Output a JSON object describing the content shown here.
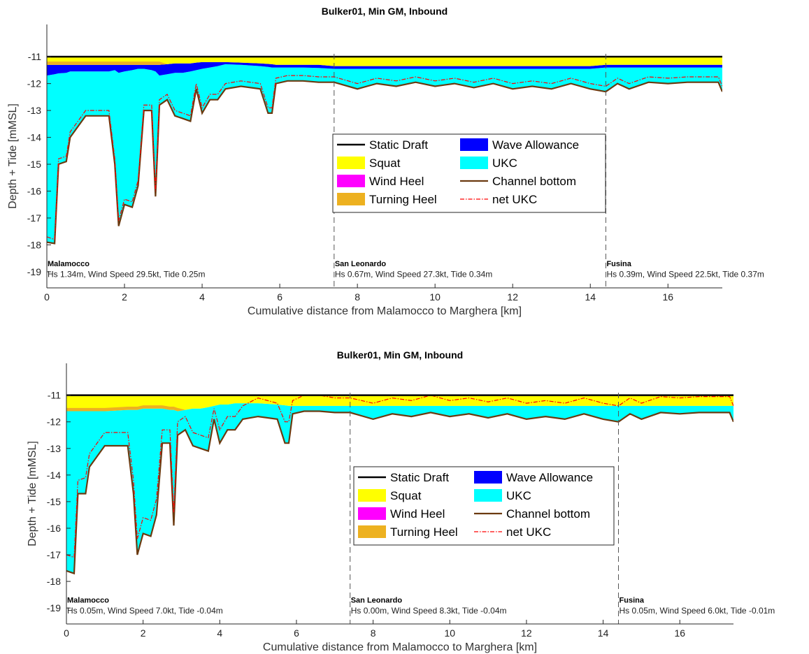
{
  "chart_data": [
    {
      "type": "area",
      "title": "Bulker01, Min GM, Inbound",
      "xlabel": "Cumulative distance from Malamocco to Marghera [km]",
      "ylabel": "Depth + Tide [mMSL]",
      "xlim": [
        0,
        17.4
      ],
      "ylim": [
        -19.6,
        -9.8
      ],
      "xticks": [
        0,
        2,
        4,
        6,
        8,
        10,
        12,
        14,
        16
      ],
      "yticks": [
        -19,
        -18,
        -17,
        -16,
        -15,
        -14,
        -13,
        -12,
        -11
      ],
      "grid": false,
      "legend_position": "center-right",
      "legend": [
        "Static Draft",
        "Wave Allowance",
        "Squat",
        "UKC",
        "Wind Heel",
        "Channel bottom",
        "Turning Heel",
        "net UKC"
      ],
      "colors": {
        "static_draft": "#000000",
        "wave_allowance": "#0000ff",
        "squat": "#ffff00",
        "ukc": "#00ffff",
        "wind_heel": "#ff00ff",
        "channel_bottom": "#6b3a10",
        "turning_heel": "#edb120",
        "net_ukc": "#ff0000"
      },
      "static_draft": -11.0,
      "x": [
        0,
        0.2,
        0.3,
        0.5,
        0.6,
        1.0,
        1.6,
        1.75,
        1.85,
        2.0,
        2.2,
        2.35,
        2.5,
        2.7,
        2.8,
        2.9,
        3.1,
        3.3,
        3.5,
        3.7,
        3.85,
        4.0,
        4.2,
        4.4,
        4.6,
        5.0,
        5.5,
        5.7,
        5.8,
        5.9,
        6.2,
        6.6,
        7.0,
        7.4,
        8.0,
        8.5,
        9.0,
        9.5,
        10.0,
        10.5,
        11.0,
        11.5,
        12.0,
        12.5,
        13.0,
        13.5,
        14.0,
        14.4,
        14.7,
        15.0,
        15.5,
        16.0,
        16.5,
        17.0,
        17.3,
        17.4
      ],
      "squat_bottom": [
        -11.3,
        -11.3,
        -11.3,
        -11.3,
        -11.3,
        -11.3,
        -11.3,
        -11.3,
        -11.3,
        -11.3,
        -11.3,
        -11.3,
        -11.3,
        -11.3,
        -11.3,
        -11.3,
        -11.28,
        -11.25,
        -11.25,
        -11.25,
        -11.22,
        -11.2,
        -11.2,
        -11.2,
        -11.2,
        -11.22,
        -11.25,
        -11.27,
        -11.28,
        -11.3,
        -11.3,
        -11.3,
        -11.3,
        -11.35,
        -11.35,
        -11.35,
        -11.35,
        -11.35,
        -11.35,
        -11.35,
        -11.35,
        -11.35,
        -11.35,
        -11.35,
        -11.35,
        -11.35,
        -11.35,
        -11.3,
        -11.3,
        -11.3,
        -11.3,
        -11.3,
        -11.3,
        -11.3,
        -11.3,
        -11.3
      ],
      "wave_bottom": [
        -11.7,
        -11.65,
        -11.62,
        -11.6,
        -11.55,
        -11.55,
        -11.55,
        -11.5,
        -11.6,
        -11.55,
        -11.5,
        -11.45,
        -11.45,
        -11.5,
        -11.55,
        -11.7,
        -11.65,
        -11.6,
        -11.6,
        -11.55,
        -11.5,
        -11.45,
        -11.4,
        -11.35,
        -11.28,
        -11.3,
        -11.35,
        -11.38,
        -11.4,
        -11.4,
        -11.4,
        -11.4,
        -11.42,
        -11.45,
        -11.45,
        -11.45,
        -11.45,
        -11.45,
        -11.45,
        -11.45,
        -11.45,
        -11.45,
        -11.45,
        -11.45,
        -11.45,
        -11.45,
        -11.45,
        -11.4,
        -11.4,
        -11.4,
        -11.4,
        -11.4,
        -11.4,
        -11.4,
        -11.4,
        -11.4
      ],
      "channel_bottom": [
        -17.9,
        -17.95,
        -15.0,
        -14.9,
        -14.0,
        -13.2,
        -13.2,
        -15.0,
        -17.3,
        -16.5,
        -16.6,
        -15.8,
        -13.0,
        -13.0,
        -16.2,
        -12.8,
        -12.6,
        -13.2,
        -13.3,
        -13.4,
        -12.2,
        -13.1,
        -12.6,
        -12.6,
        -12.2,
        -12.1,
        -12.2,
        -13.1,
        -13.1,
        -12.0,
        -11.9,
        -11.9,
        -11.95,
        -11.95,
        -12.2,
        -12.0,
        -12.1,
        -11.95,
        -12.1,
        -12.0,
        -12.15,
        -12.0,
        -12.2,
        -12.1,
        -12.2,
        -12.0,
        -12.2,
        -12.3,
        -12.0,
        -12.2,
        -11.95,
        -12.0,
        -11.95,
        -11.95,
        -11.95,
        -12.3
      ],
      "net_ukc": [
        -17.7,
        -17.8,
        -14.8,
        -14.7,
        -13.8,
        -13.0,
        -13.0,
        -14.8,
        -17.1,
        -16.3,
        -16.4,
        -15.6,
        -12.8,
        -12.8,
        -16.0,
        -12.6,
        -12.4,
        -13.0,
        -13.1,
        -13.2,
        -12.0,
        -12.9,
        -12.4,
        -12.4,
        -12.0,
        -11.9,
        -12.0,
        -12.9,
        -12.9,
        -11.8,
        -11.7,
        -11.7,
        -11.75,
        -11.75,
        -12.0,
        -11.8,
        -11.9,
        -11.75,
        -11.9,
        -11.8,
        -11.95,
        -11.8,
        -12.0,
        -11.9,
        -12.0,
        -11.8,
        -12.0,
        -12.1,
        -11.8,
        -12.0,
        -11.75,
        -11.8,
        -11.75,
        -11.75,
        -11.75,
        -12.1
      ],
      "locations": [
        {
          "x": 0,
          "name": "Malamocco",
          "info": "Hs 1.34m, Wind Speed 29.5kt, Tide 0.25m"
        },
        {
          "x": 7.4,
          "name": "San Leonardo",
          "info": "Hs 0.67m, Wind Speed 27.3kt, Tide 0.34m"
        },
        {
          "x": 14.4,
          "name": "Fusina",
          "info": "Hs 0.39m, Wind Speed 22.5kt, Tide 0.37m"
        }
      ]
    },
    {
      "type": "area",
      "title": "Bulker01, Min GM, Inbound",
      "xlabel": "Cumulative distance from Malamocco to Marghera [km]",
      "ylabel": "Depth + Tide [mMSL]",
      "xlim": [
        0,
        17.4
      ],
      "ylim": [
        -19.6,
        -9.8
      ],
      "xticks": [
        0,
        2,
        4,
        6,
        8,
        10,
        12,
        14,
        16
      ],
      "yticks": [
        -19,
        -18,
        -17,
        -16,
        -15,
        -14,
        -13,
        -12,
        -11
      ],
      "grid": false,
      "legend_position": "center-right",
      "legend": [
        "Static Draft",
        "Wave Allowance",
        "Squat",
        "UKC",
        "Wind Heel",
        "Channel bottom",
        "Turning Heel",
        "net UKC"
      ],
      "colors": {
        "static_draft": "#000000",
        "wave_allowance": "#0000ff",
        "squat": "#ffff00",
        "ukc": "#00ffff",
        "wind_heel": "#ff00ff",
        "channel_bottom": "#6b3a10",
        "turning_heel": "#edb120",
        "net_ukc": "#ff0000"
      },
      "static_draft": -11.0,
      "x": [
        0,
        0.2,
        0.3,
        0.5,
        0.6,
        1.0,
        1.6,
        1.75,
        1.85,
        2.0,
        2.2,
        2.35,
        2.5,
        2.7,
        2.8,
        2.9,
        3.1,
        3.3,
        3.5,
        3.7,
        3.85,
        4.0,
        4.2,
        4.4,
        4.6,
        5.0,
        5.5,
        5.7,
        5.8,
        5.9,
        6.2,
        6.6,
        7.0,
        7.4,
        8.0,
        8.5,
        9.0,
        9.5,
        10.0,
        10.5,
        11.0,
        11.5,
        12.0,
        12.5,
        13.0,
        13.5,
        14.0,
        14.4,
        14.7,
        15.0,
        15.5,
        16.0,
        16.5,
        17.0,
        17.3,
        17.4
      ],
      "squat_bottom": [
        -11.6,
        -11.6,
        -11.6,
        -11.6,
        -11.6,
        -11.6,
        -11.55,
        -11.55,
        -11.55,
        -11.5,
        -11.5,
        -11.5,
        -11.5,
        -11.55,
        -11.55,
        -11.6,
        -11.55,
        -11.5,
        -11.5,
        -11.45,
        -11.4,
        -11.35,
        -11.35,
        -11.3,
        -11.3,
        -11.3,
        -11.35,
        -11.38,
        -11.4,
        -11.4,
        -11.4,
        -11.4,
        -11.4,
        -11.4,
        -11.4,
        -11.4,
        -11.4,
        -11.4,
        -11.4,
        -11.4,
        -11.4,
        -11.4,
        -11.4,
        -11.4,
        -11.4,
        -11.4,
        -11.4,
        -11.4,
        -11.4,
        -11.4,
        -11.4,
        -11.4,
        -11.4,
        -11.4,
        -11.4,
        -11.4
      ],
      "channel_bottom": [
        -17.6,
        -17.7,
        -14.7,
        -14.7,
        -13.7,
        -12.9,
        -12.9,
        -14.7,
        -17.0,
        -16.2,
        -16.3,
        -15.5,
        -12.8,
        -12.8,
        -15.9,
        -12.5,
        -12.3,
        -12.9,
        -13.0,
        -13.1,
        -11.9,
        -12.8,
        -12.3,
        -12.3,
        -11.9,
        -11.8,
        -11.9,
        -12.8,
        -12.8,
        -11.7,
        -11.6,
        -11.6,
        -11.65,
        -11.65,
        -11.9,
        -11.7,
        -11.8,
        -11.65,
        -11.8,
        -11.7,
        -11.85,
        -11.7,
        -11.9,
        -11.8,
        -11.9,
        -11.7,
        -11.9,
        -12.0,
        -11.7,
        -11.9,
        -11.65,
        -11.7,
        -11.65,
        -11.65,
        -11.65,
        -12.0
      ],
      "net_ukc": [
        -17.0,
        -17.1,
        -14.2,
        -14.1,
        -13.2,
        -12.4,
        -12.4,
        -14.2,
        -16.4,
        -15.6,
        -15.7,
        -14.9,
        -12.3,
        -12.3,
        -15.4,
        -12.0,
        -11.8,
        -12.4,
        -12.5,
        -12.6,
        -11.5,
        -12.3,
        -11.8,
        -11.8,
        -11.4,
        -11.1,
        -11.3,
        -12.0,
        -12.0,
        -11.2,
        -11.0,
        -11.0,
        -11.1,
        -11.1,
        -11.3,
        -11.1,
        -11.2,
        -11.0,
        -11.2,
        -11.1,
        -11.25,
        -11.1,
        -11.3,
        -11.2,
        -11.3,
        -11.1,
        -11.3,
        -11.4,
        -11.1,
        -11.3,
        -11.05,
        -11.1,
        -11.05,
        -11.05,
        -11.05,
        -11.4
      ],
      "locations": [
        {
          "x": 0,
          "name": "Malamocco",
          "info": "Hs 0.05m, Wind Speed 7.0kt, Tide -0.04m"
        },
        {
          "x": 7.4,
          "name": "San Leonardo",
          "info": "Hs 0.00m, Wind Speed 8.3kt, Tide -0.04m"
        },
        {
          "x": 14.4,
          "name": "Fusina",
          "info": "Hs 0.05m, Wind Speed 6.0kt, Tide -0.01m"
        }
      ]
    }
  ]
}
